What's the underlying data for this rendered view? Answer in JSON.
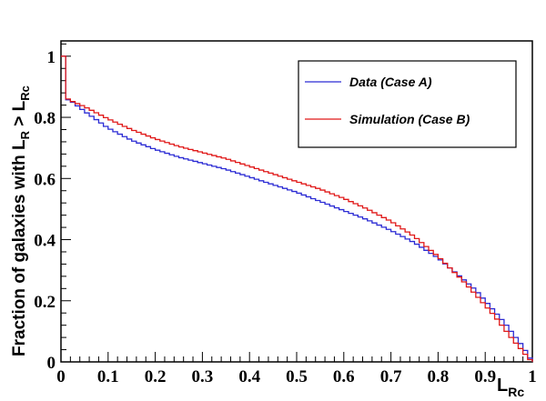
{
  "chart_data": {
    "type": "line",
    "title": "",
    "xlabel": {
      "main": "L",
      "sub": "Rc"
    },
    "ylabel": {
      "pre": "Fraction of galaxies with L",
      "sub1": "R",
      "mid": " > L",
      "sub2": "Rc"
    },
    "xlim": [
      0,
      1
    ],
    "ylim": [
      0,
      1.05
    ],
    "x_tick_labels": [
      "0",
      "0.1",
      "0.2",
      "0.3",
      "0.4",
      "0.5",
      "0.6",
      "0.7",
      "0.8",
      "0.9",
      "1"
    ],
    "y_tick_labels": [
      "0",
      "0.2",
      "0.4",
      "0.6",
      "0.8",
      "1"
    ],
    "y_tick_values": [
      0,
      0.2,
      0.4,
      0.6,
      0.8,
      1
    ],
    "grid": false,
    "legend_position": "top-right",
    "series": [
      {
        "name": "Data (Case A)",
        "color": "#2b2bd4",
        "x": [
          0,
          0.01,
          0.02,
          0.05,
          0.1,
          0.15,
          0.2,
          0.25,
          0.3,
          0.35,
          0.4,
          0.45,
          0.5,
          0.55,
          0.6,
          0.65,
          0.7,
          0.75,
          0.8,
          0.85,
          0.88,
          0.9,
          0.92,
          0.94,
          0.96,
          0.98,
          0.99,
          1.0
        ],
        "y": [
          1.0,
          0.86,
          0.855,
          0.82,
          0.765,
          0.725,
          0.695,
          0.67,
          0.65,
          0.63,
          0.605,
          0.58,
          0.555,
          0.525,
          0.495,
          0.465,
          0.43,
          0.39,
          0.34,
          0.275,
          0.235,
          0.2,
          0.165,
          0.13,
          0.09,
          0.05,
          0.025,
          0.0
        ]
      },
      {
        "name": "Simulation (Case B)",
        "color": "#e01818",
        "x": [
          0,
          0.01,
          0.02,
          0.05,
          0.1,
          0.15,
          0.2,
          0.25,
          0.3,
          0.35,
          0.4,
          0.45,
          0.5,
          0.55,
          0.6,
          0.65,
          0.7,
          0.75,
          0.8,
          0.85,
          0.88,
          0.9,
          0.92,
          0.94,
          0.96,
          0.98,
          0.99,
          1.0
        ],
        "y": [
          1.0,
          0.865,
          0.855,
          0.835,
          0.795,
          0.76,
          0.73,
          0.705,
          0.685,
          0.665,
          0.64,
          0.615,
          0.59,
          0.565,
          0.535,
          0.5,
          0.46,
          0.41,
          0.345,
          0.27,
          0.22,
          0.185,
          0.15,
          0.11,
          0.07,
          0.035,
          0.015,
          0.0
        ]
      }
    ]
  }
}
